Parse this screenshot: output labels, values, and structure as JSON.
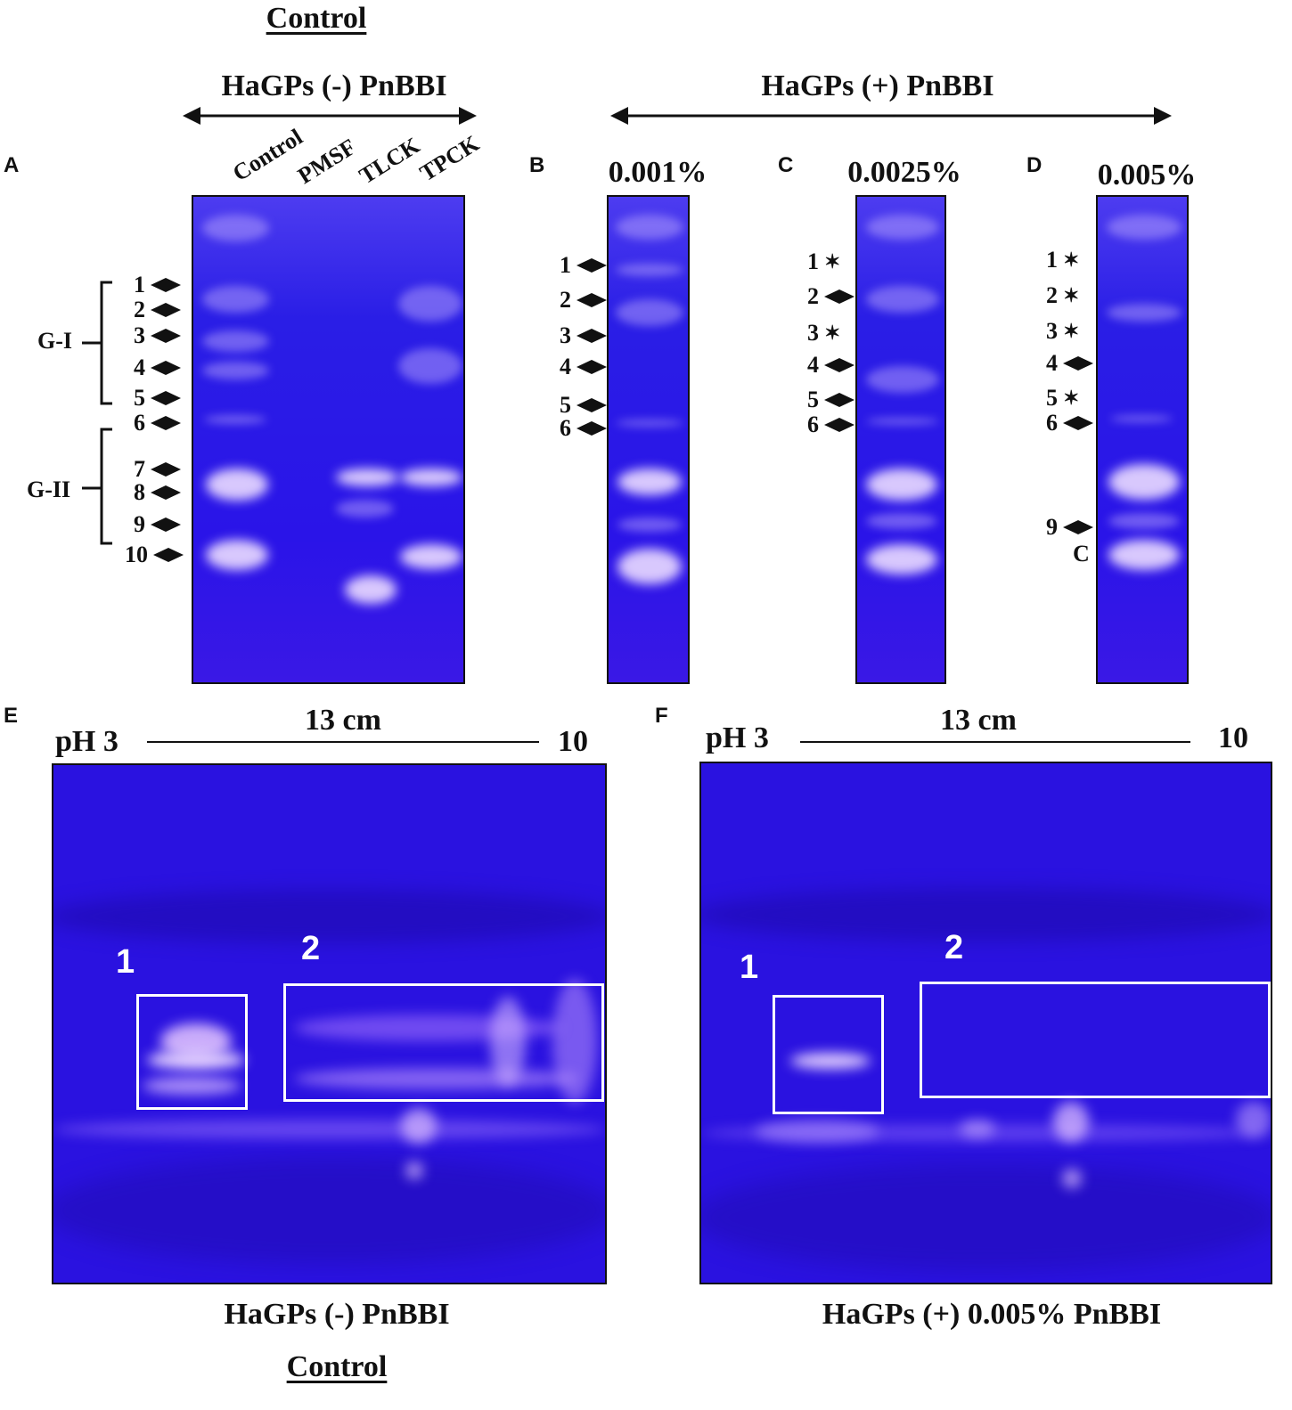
{
  "top": {
    "control_title": "Control",
    "left_group_label": "HaGPs (-) PnBBI",
    "right_group_label": "HaGPs (+) PnBBI"
  },
  "panels": {
    "A": {
      "letter": "A",
      "lanes": [
        "Control",
        "PMSF",
        "TLCK",
        "TPCK"
      ],
      "groups": [
        {
          "label": "G-I"
        },
        {
          "label": "G-II"
        }
      ],
      "markers": [
        {
          "label": "1",
          "icon": "diamond-arrow-icon"
        },
        {
          "label": "2",
          "icon": "diamond-arrow-icon"
        },
        {
          "label": "3",
          "icon": "diamond-arrow-icon"
        },
        {
          "label": "4",
          "icon": "diamond-arrow-icon"
        },
        {
          "label": "5",
          "icon": "diamond-arrow-icon"
        },
        {
          "label": "6",
          "icon": "diamond-arrow-icon"
        },
        {
          "label": "7",
          "icon": "diamond-arrow-icon"
        },
        {
          "label": "8",
          "icon": "diamond-arrow-icon"
        },
        {
          "label": "9",
          "icon": "diamond-arrow-icon"
        },
        {
          "label": "10",
          "icon": "diamond-arrow-icon"
        }
      ]
    },
    "B": {
      "letter": "B",
      "concentration": "0.001%",
      "markers": [
        {
          "label": "1",
          "icon": "diamond-arrow-icon"
        },
        {
          "label": "2",
          "icon": "diamond-arrow-icon"
        },
        {
          "label": "3",
          "icon": "diamond-arrow-icon"
        },
        {
          "label": "4",
          "icon": "diamond-arrow-icon"
        },
        {
          "label": "5",
          "icon": "diamond-arrow-icon"
        },
        {
          "label": "6",
          "icon": "diamond-arrow-icon"
        }
      ]
    },
    "C": {
      "letter": "C",
      "concentration": "0.0025%",
      "markers": [
        {
          "label": "1",
          "icon": "star-icon"
        },
        {
          "label": "2",
          "icon": "diamond-arrow-icon"
        },
        {
          "label": "3",
          "icon": "star-icon"
        },
        {
          "label": "4",
          "icon": "diamond-arrow-icon"
        },
        {
          "label": "5",
          "icon": "diamond-arrow-icon"
        },
        {
          "label": "6",
          "icon": "diamond-arrow-icon"
        }
      ]
    },
    "D": {
      "letter": "D",
      "concentration": "0.005%",
      "markers": [
        {
          "label": "1",
          "icon": "star-icon"
        },
        {
          "label": "2",
          "icon": "star-icon"
        },
        {
          "label": "3",
          "icon": "star-icon"
        },
        {
          "label": "4",
          "icon": "diamond-arrow-icon"
        },
        {
          "label": "5",
          "icon": "star-icon"
        },
        {
          "label": "6",
          "icon": "diamond-arrow-icon"
        },
        {
          "label": "9",
          "icon": "diamond-arrow-icon"
        }
      ],
      "extra_label": "C"
    },
    "E": {
      "letter": "E",
      "ph_start": "pH 3",
      "length": "13 cm",
      "ph_end": "10",
      "boxes": [
        {
          "label": "1"
        },
        {
          "label": "2"
        }
      ],
      "caption": "HaGPs (-) PnBBI",
      "caption_sub": "Control"
    },
    "F": {
      "letter": "F",
      "ph_start": "pH 3",
      "length": "13 cm",
      "ph_end": "10",
      "boxes": [
        {
          "label": "1"
        },
        {
          "label": "2"
        }
      ],
      "caption": "HaGPs (+) 0.005% PnBBI"
    }
  },
  "colors": {
    "gel_blue": "#2a14e8",
    "band_white": "#ebdcff",
    "box_white": "#ffffff"
  }
}
